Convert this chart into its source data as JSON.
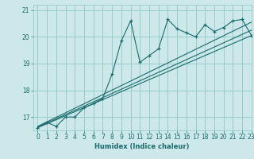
{
  "xlabel": "Humidex (Indice chaleur)",
  "xlim": [
    -0.5,
    23
  ],
  "ylim": [
    16.5,
    21.2
  ],
  "yticks": [
    17,
    18,
    19,
    20,
    21
  ],
  "xticks": [
    0,
    1,
    2,
    3,
    4,
    5,
    6,
    7,
    8,
    9,
    10,
    11,
    12,
    13,
    14,
    15,
    16,
    17,
    18,
    19,
    20,
    21,
    22,
    23
  ],
  "bg_color": "#cce8ea",
  "line_color": "#1a6b6b",
  "grid_color": "#99cccc",
  "humidex_x": [
    0,
    1,
    2,
    3,
    4,
    5,
    6,
    7,
    8,
    9,
    10,
    11,
    12,
    13,
    14,
    15,
    16,
    17,
    18,
    19,
    20,
    21,
    22,
    23
  ],
  "humidex_y": [
    16.6,
    16.8,
    16.65,
    17.0,
    17.0,
    17.35,
    17.5,
    17.7,
    18.6,
    19.85,
    20.6,
    19.05,
    19.3,
    19.55,
    20.65,
    20.3,
    20.15,
    20.0,
    20.45,
    20.2,
    20.35,
    20.6,
    20.65,
    20.05
  ],
  "line1_x": [
    0,
    23
  ],
  "line1_y": [
    16.6,
    20.05
  ],
  "line2_x": [
    0,
    23
  ],
  "line2_y": [
    16.62,
    20.25
  ],
  "line3_x": [
    0,
    23
  ],
  "line3_y": [
    16.65,
    20.55
  ]
}
